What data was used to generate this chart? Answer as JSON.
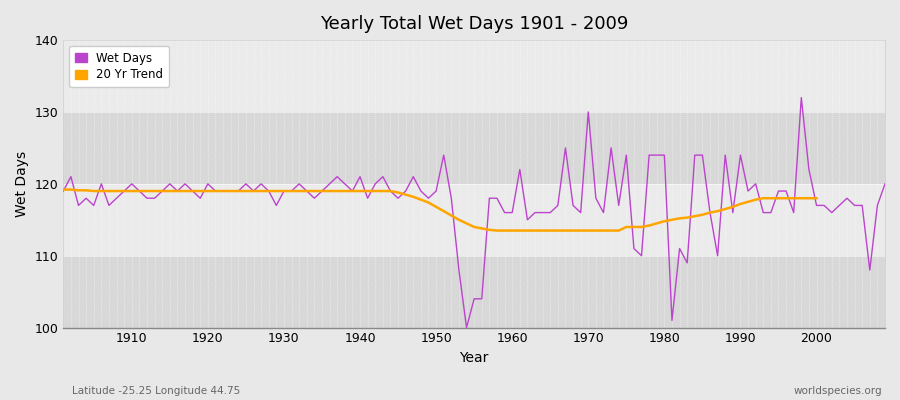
{
  "title": "Yearly Total Wet Days 1901 - 2009",
  "xlabel": "Year",
  "ylabel": "Wet Days",
  "subtitle_left": "Latitude -25.25 Longitude 44.75",
  "subtitle_right": "worldspecies.org",
  "wet_days_color": "#bb44cc",
  "trend_color": "#ffa500",
  "bg_color": "#e8e8e8",
  "plot_bg_color": "#e0e0e0",
  "band_light": "#ebebeb",
  "band_dark": "#d8d8d8",
  "ylim": [
    100,
    140
  ],
  "xlim": [
    1901,
    2009
  ],
  "yticks": [
    100,
    110,
    120,
    130,
    140
  ],
  "xticks": [
    1910,
    1920,
    1930,
    1940,
    1950,
    1960,
    1970,
    1980,
    1990,
    2000
  ],
  "years": [
    1901,
    1902,
    1903,
    1904,
    1905,
    1906,
    1907,
    1908,
    1909,
    1910,
    1911,
    1912,
    1913,
    1914,
    1915,
    1916,
    1917,
    1918,
    1919,
    1920,
    1921,
    1922,
    1923,
    1924,
    1925,
    1926,
    1927,
    1928,
    1929,
    1930,
    1931,
    1932,
    1933,
    1934,
    1935,
    1936,
    1937,
    1938,
    1939,
    1940,
    1941,
    1942,
    1943,
    1944,
    1945,
    1946,
    1947,
    1948,
    1949,
    1950,
    1951,
    1952,
    1953,
    1954,
    1955,
    1956,
    1957,
    1958,
    1959,
    1960,
    1961,
    1962,
    1963,
    1964,
    1965,
    1966,
    1967,
    1968,
    1969,
    1970,
    1971,
    1972,
    1973,
    1974,
    1975,
    1976,
    1977,
    1978,
    1979,
    1980,
    1981,
    1982,
    1983,
    1984,
    1985,
    1986,
    1987,
    1988,
    1989,
    1990,
    1991,
    1992,
    1993,
    1994,
    1995,
    1996,
    1997,
    1998,
    1999,
    2000,
    2001,
    2002,
    2003,
    2004,
    2005,
    2006,
    2007,
    2008,
    2009
  ],
  "wet_days": [
    119,
    121,
    117,
    118,
    117,
    120,
    117,
    118,
    119,
    120,
    119,
    118,
    118,
    119,
    120,
    119,
    120,
    119,
    118,
    120,
    119,
    119,
    119,
    119,
    120,
    119,
    120,
    119,
    117,
    119,
    119,
    120,
    119,
    118,
    119,
    120,
    121,
    120,
    119,
    121,
    118,
    120,
    121,
    119,
    118,
    119,
    121,
    119,
    118,
    119,
    124,
    118,
    108,
    100,
    104,
    104,
    118,
    118,
    116,
    116,
    122,
    115,
    116,
    116,
    116,
    117,
    125,
    117,
    116,
    130,
    118,
    116,
    125,
    117,
    124,
    111,
    110,
    124,
    124,
    124,
    101,
    111,
    109,
    124,
    124,
    116,
    110,
    124,
    116,
    124,
    119,
    120,
    116,
    116,
    119,
    119,
    116,
    132,
    122,
    117,
    117,
    116,
    117,
    118,
    117,
    117,
    108,
    117,
    120
  ],
  "trend": [
    119.2,
    119.2,
    119.1,
    119.1,
    119.0,
    119.0,
    119.0,
    119.0,
    119.0,
    119.0,
    119.0,
    119.0,
    119.0,
    119.0,
    119.0,
    119.0,
    119.0,
    119.0,
    119.0,
    119.0,
    119.0,
    119.0,
    119.0,
    119.0,
    119.0,
    119.0,
    119.0,
    119.0,
    119.0,
    119.0,
    119.0,
    119.0,
    119.0,
    119.0,
    119.0,
    119.0,
    119.0,
    119.0,
    119.0,
    119.0,
    119.0,
    119.0,
    119.0,
    119.0,
    118.8,
    118.5,
    118.2,
    117.8,
    117.4,
    116.8,
    116.2,
    115.6,
    115.0,
    114.5,
    114.0,
    113.8,
    113.6,
    113.5,
    113.5,
    113.5,
    113.5,
    113.5,
    113.5,
    113.5,
    113.5,
    113.5,
    113.5,
    113.5,
    113.5,
    113.5,
    113.5,
    113.5,
    113.5,
    113.5,
    114.0,
    114.0,
    114.0,
    114.2,
    114.5,
    114.8,
    115.0,
    115.2,
    115.3,
    115.5,
    115.7,
    116.0,
    116.2,
    116.5,
    116.8,
    117.2,
    117.5,
    117.8,
    118.0,
    118.0,
    118.0,
    118.0,
    118.0,
    118.0,
    118.0,
    118.0,
    null,
    null,
    null,
    null,
    null,
    null,
    null,
    null,
    null
  ]
}
